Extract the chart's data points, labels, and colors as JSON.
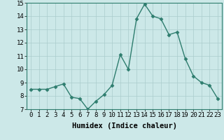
{
  "x": [
    0,
    1,
    2,
    3,
    4,
    5,
    6,
    7,
    8,
    9,
    10,
    11,
    12,
    13,
    14,
    15,
    16,
    17,
    18,
    19,
    20,
    21,
    22,
    23
  ],
  "y": [
    8.5,
    8.5,
    8.5,
    8.7,
    8.9,
    7.9,
    7.8,
    7.0,
    7.6,
    8.1,
    8.8,
    11.1,
    10.0,
    13.8,
    14.9,
    14.0,
    13.8,
    12.6,
    12.8,
    10.8,
    9.5,
    9.0,
    8.8,
    7.8
  ],
  "xlabel": "Humidex (Indice chaleur)",
  "xlim": [
    -0.5,
    23.5
  ],
  "ylim": [
    7,
    15
  ],
  "yticks": [
    7,
    8,
    9,
    10,
    11,
    12,
    13,
    14,
    15
  ],
  "xticks": [
    0,
    1,
    2,
    3,
    4,
    5,
    6,
    7,
    8,
    9,
    10,
    11,
    12,
    13,
    14,
    15,
    16,
    17,
    18,
    19,
    20,
    21,
    22,
    23
  ],
  "line_color": "#2e7d6e",
  "marker": "D",
  "marker_size": 2.5,
  "bg_color": "#cce8e8",
  "grid_color": "#aacccc",
  "xlabel_fontsize": 7.5,
  "tick_fontsize": 6.5
}
